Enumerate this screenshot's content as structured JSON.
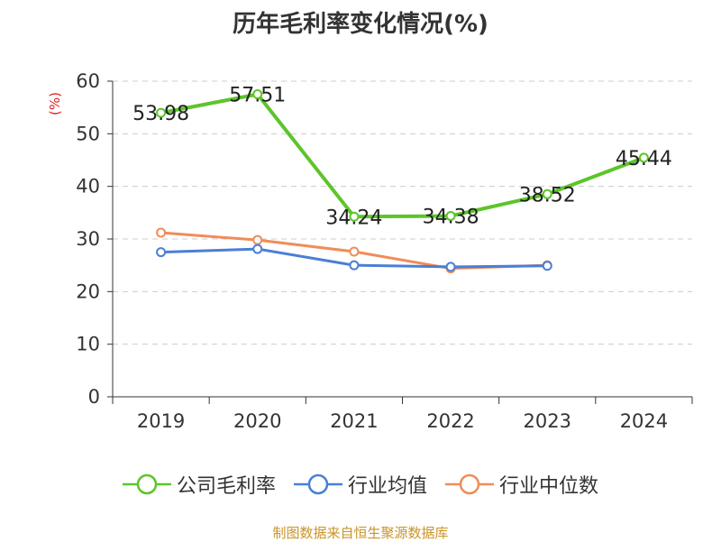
{
  "chart_data": {
    "type": "line",
    "title": "历年毛利率变化情况(%)",
    "ylabel": "(%)",
    "xlabel": "",
    "categories": [
      "2019",
      "2020",
      "2021",
      "2022",
      "2023",
      "2024"
    ],
    "ylim": [
      0,
      60
    ],
    "yticks": [
      0,
      10,
      20,
      30,
      40,
      50,
      60
    ],
    "grid": "horizontal dashed",
    "legend_position": "bottom",
    "series": [
      {
        "name": "公司毛利率",
        "color": "#5cc52a",
        "values": [
          53.98,
          57.51,
          34.24,
          34.38,
          38.52,
          45.44
        ],
        "labels": [
          "53.98",
          "57.51",
          "34.24",
          "34.38",
          "38.52",
          "45.44"
        ]
      },
      {
        "name": "行业均值",
        "color": "#4a7fd6",
        "values": [
          27.5,
          28.1,
          25.0,
          24.7,
          24.9,
          null
        ]
      },
      {
        "name": "行业中位数",
        "color": "#f08c5a",
        "values": [
          31.2,
          29.8,
          27.6,
          24.4,
          25.0,
          null
        ]
      }
    ]
  },
  "source": "制图数据来自恒生聚源数据库"
}
